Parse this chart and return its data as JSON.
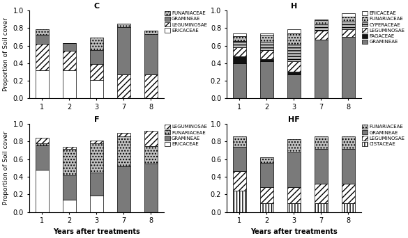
{
  "treatments": [
    "C",
    "H",
    "F",
    "HF"
  ],
  "years": [
    1,
    2,
    3,
    7,
    8
  ],
  "C": {
    "title": "C",
    "ERICACEAE": [
      0.32,
      0.32,
      0.21,
      0.0,
      0.0
    ],
    "LEGUMINOSAE": [
      0.3,
      0.22,
      0.18,
      0.27,
      0.27
    ],
    "GRAMINEAE": [
      0.1,
      0.09,
      0.16,
      0.54,
      0.46
    ],
    "FUNARIACEAE": [
      0.07,
      0.0,
      0.14,
      0.04,
      0.04
    ]
  },
  "H": {
    "title": "H",
    "GRAMINEAE": [
      0.4,
      0.42,
      0.27,
      0.67,
      0.7
    ],
    "FAGACEAE": [
      0.08,
      0.03,
      0.03,
      0.0,
      0.0
    ],
    "LEGUMINOSAE": [
      0.1,
      0.1,
      0.12,
      0.1,
      0.09
    ],
    "CYPERACEAE": [
      0.07,
      0.09,
      0.19,
      0.07,
      0.08
    ],
    "FUNARIACEAE": [
      0.06,
      0.08,
      0.13,
      0.05,
      0.06
    ],
    "ERICACEAE": [
      0.03,
      0.02,
      0.05,
      0.01,
      0.04
    ]
  },
  "F": {
    "title": "F",
    "ERICACEAE": [
      0.48,
      0.14,
      0.19,
      0.0,
      0.0
    ],
    "GRAMINEAE": [
      0.28,
      0.28,
      0.26,
      0.52,
      0.55
    ],
    "FUNARIACEAE": [
      0.02,
      0.3,
      0.33,
      0.34,
      0.2
    ],
    "LEGUMINOSAE": [
      0.06,
      0.02,
      0.03,
      0.04,
      0.17
    ]
  },
  "HF": {
    "title": "HF",
    "CISTACEAE": [
      0.24,
      0.1,
      0.1,
      0.1,
      0.1
    ],
    "LEGUMINOSAE": [
      0.22,
      0.18,
      0.18,
      0.22,
      0.22
    ],
    "GRAMINEAE": [
      0.28,
      0.28,
      0.4,
      0.4,
      0.4
    ],
    "FUNARIACEAE": [
      0.12,
      0.06,
      0.15,
      0.14,
      0.14
    ]
  },
  "ylabel": "Proportion of Soil cover",
  "xlabel_bottom": "Years after treatments",
  "ylim": [
    0,
    1.0
  ],
  "yticks": [
    0.0,
    0.2,
    0.4,
    0.6,
    0.8,
    1.0
  ]
}
